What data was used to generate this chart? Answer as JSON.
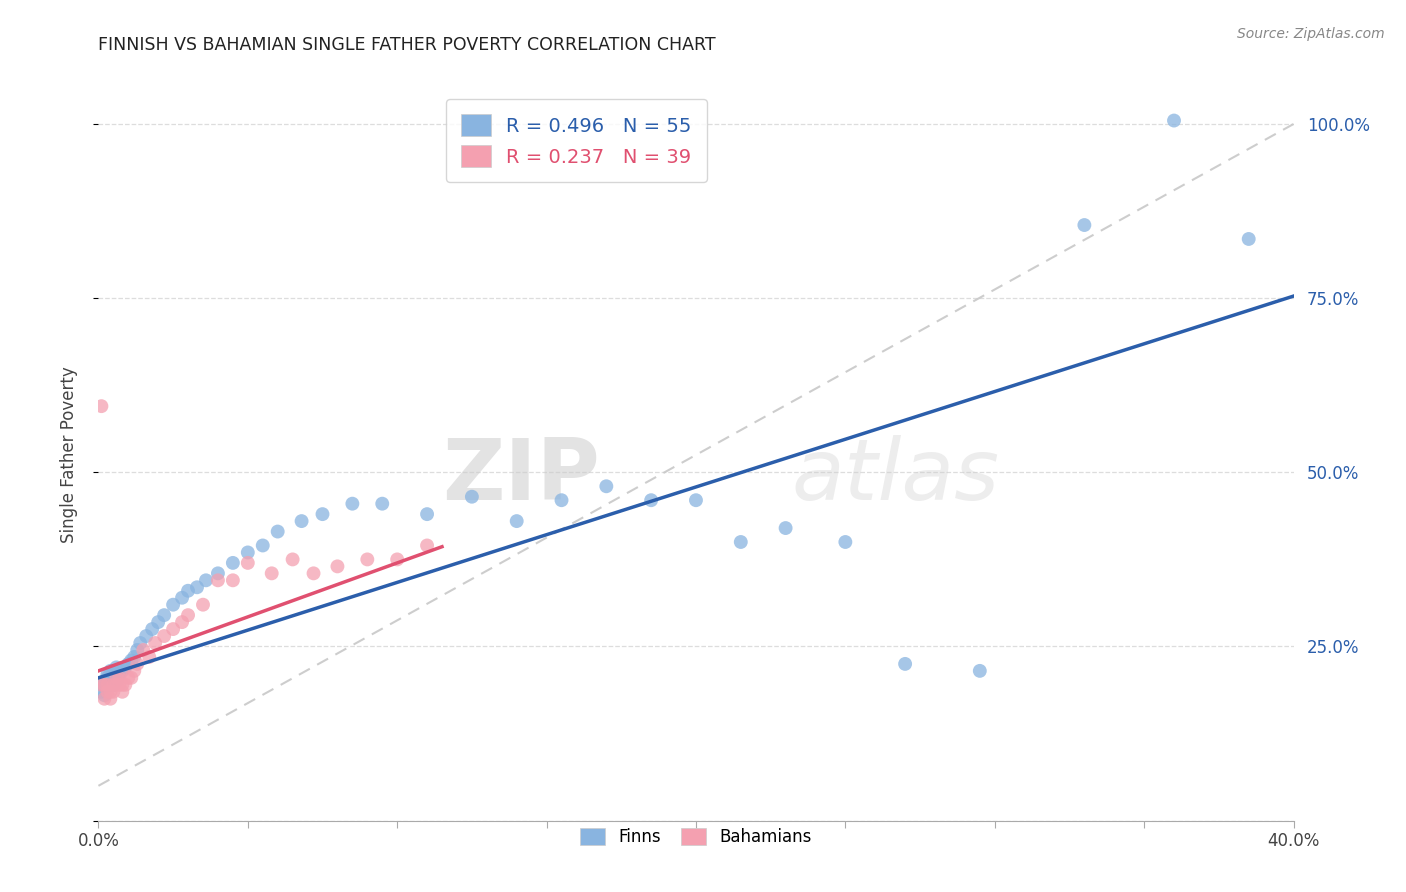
{
  "title": "FINNISH VS BAHAMIAN SINGLE FATHER POVERTY CORRELATION CHART",
  "source": "Source: ZipAtlas.com",
  "ylabel": "Single Father Poverty",
  "xlim": [
    0.0,
    0.4
  ],
  "ylim": [
    0.0,
    1.05
  ],
  "yticks": [
    0.0,
    0.25,
    0.5,
    0.75,
    1.0
  ],
  "xticks": [
    0.0,
    0.05,
    0.1,
    0.15,
    0.2,
    0.25,
    0.3,
    0.35,
    0.4
  ],
  "finns_R": 0.496,
  "finns_N": 55,
  "bahamians_R": 0.237,
  "bahamians_N": 39,
  "finns_color": "#89B4E0",
  "bahamians_color": "#F4A0B0",
  "finns_line_color": "#2B5EAB",
  "bahamians_line_color": "#E05070",
  "dashed_line_color": "#C8C8C8",
  "watermark_zip": "ZIP",
  "watermark_atlas": "atlas",
  "finns_x": [
    0.001,
    0.001,
    0.002,
    0.002,
    0.003,
    0.003,
    0.003,
    0.004,
    0.004,
    0.005,
    0.005,
    0.005,
    0.006,
    0.006,
    0.007,
    0.008,
    0.009,
    0.01,
    0.011,
    0.012,
    0.013,
    0.014,
    0.016,
    0.018,
    0.02,
    0.022,
    0.025,
    0.028,
    0.03,
    0.033,
    0.036,
    0.04,
    0.045,
    0.05,
    0.055,
    0.06,
    0.068,
    0.075,
    0.085,
    0.095,
    0.11,
    0.125,
    0.14,
    0.155,
    0.17,
    0.185,
    0.2,
    0.215,
    0.23,
    0.25,
    0.27,
    0.295,
    0.33,
    0.36,
    0.385
  ],
  "finns_y": [
    0.185,
    0.195,
    0.18,
    0.2,
    0.195,
    0.205,
    0.21,
    0.195,
    0.215,
    0.195,
    0.205,
    0.215,
    0.2,
    0.22,
    0.21,
    0.215,
    0.22,
    0.225,
    0.23,
    0.235,
    0.245,
    0.255,
    0.265,
    0.275,
    0.285,
    0.295,
    0.31,
    0.32,
    0.33,
    0.335,
    0.345,
    0.355,
    0.37,
    0.385,
    0.395,
    0.415,
    0.43,
    0.44,
    0.455,
    0.455,
    0.44,
    0.465,
    0.43,
    0.46,
    0.48,
    0.46,
    0.46,
    0.4,
    0.42,
    0.4,
    0.225,
    0.215,
    0.855,
    1.005,
    0.835
  ],
  "bahamians_x": [
    0.001,
    0.001,
    0.002,
    0.002,
    0.003,
    0.003,
    0.004,
    0.004,
    0.005,
    0.005,
    0.006,
    0.006,
    0.007,
    0.007,
    0.008,
    0.008,
    0.009,
    0.01,
    0.011,
    0.012,
    0.013,
    0.015,
    0.017,
    0.019,
    0.022,
    0.025,
    0.028,
    0.03,
    0.035,
    0.04,
    0.045,
    0.05,
    0.058,
    0.065,
    0.072,
    0.08,
    0.09,
    0.1,
    0.11
  ],
  "bahamians_y": [
    0.595,
    0.195,
    0.195,
    0.175,
    0.195,
    0.185,
    0.185,
    0.175,
    0.185,
    0.195,
    0.195,
    0.205,
    0.195,
    0.205,
    0.195,
    0.185,
    0.195,
    0.205,
    0.205,
    0.215,
    0.225,
    0.245,
    0.235,
    0.255,
    0.265,
    0.275,
    0.285,
    0.295,
    0.31,
    0.345,
    0.345,
    0.37,
    0.355,
    0.375,
    0.355,
    0.365,
    0.375,
    0.375,
    0.395
  ],
  "bahamians_line_x_end": 0.115,
  "finns_line_intercept": 0.205,
  "finns_line_slope": 1.37,
  "bahamians_line_intercept": 0.215,
  "bahamians_line_slope": 1.55
}
